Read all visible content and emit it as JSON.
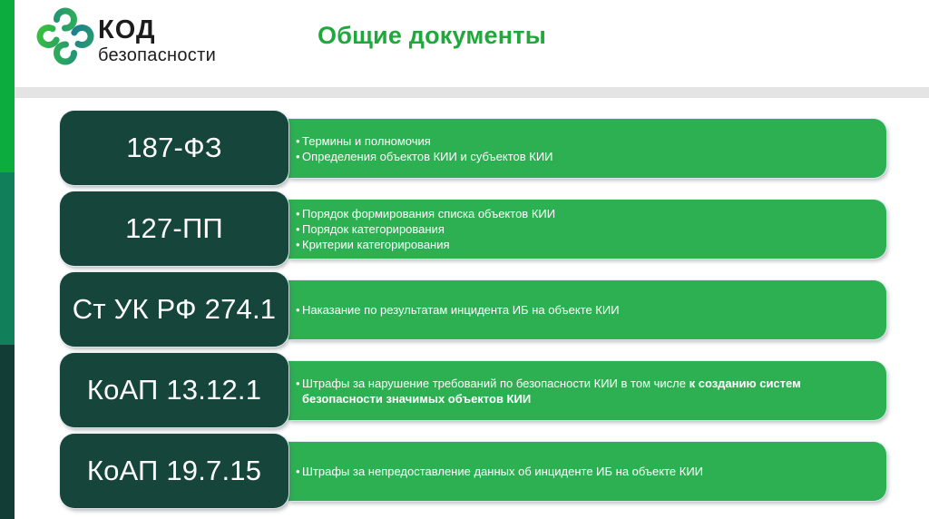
{
  "brand": {
    "logo_line1": "КОД",
    "logo_line2": "безопасности"
  },
  "page": {
    "title": "Общие документы"
  },
  "rows": [
    {
      "label": "187-ФЗ",
      "bullets": [
        {
          "text": "Термины и полномочия"
        },
        {
          "text": "Определения объектов КИИ и субъектов КИИ"
        }
      ]
    },
    {
      "label": "127-ПП",
      "bullets": [
        {
          "text": "Порядок формирования списка объектов КИИ"
        },
        {
          "text": "Порядок категорирования"
        },
        {
          "text": "Критерии категорирования"
        }
      ]
    },
    {
      "label": "Ст УК РФ 274.1",
      "bullets": [
        {
          "text": "Наказание по результатам инцидента ИБ на объекте КИИ"
        }
      ]
    },
    {
      "label": "КоАП 13.12.1",
      "bullets": [
        {
          "text": "Штрафы за нарушение требований по безопасности КИИ в том числе ",
          "bold": "к созданию систем безопасности значимых объектов КИИ"
        }
      ]
    },
    {
      "label": "КоАП 19.7.15",
      "bullets": [
        {
          "text": "Штрафы за непредоставление данных об инциденте ИБ на объекте КИИ"
        }
      ]
    }
  ],
  "icons": {
    "logo_icon": "four-ring-clover"
  },
  "colors": {
    "stripe_top": "#0CAC3F",
    "stripe_mid": "#11805A",
    "stripe_bottom": "#123D37",
    "box_dark": "#16453C",
    "bar_green": "#2CB052",
    "title_green": "#1FA83B",
    "divider_gray": "#E4E4E4",
    "logo_text": "#1C1C1C",
    "logo_green": "#38C23C",
    "logo_teal": "#1B7E92"
  }
}
